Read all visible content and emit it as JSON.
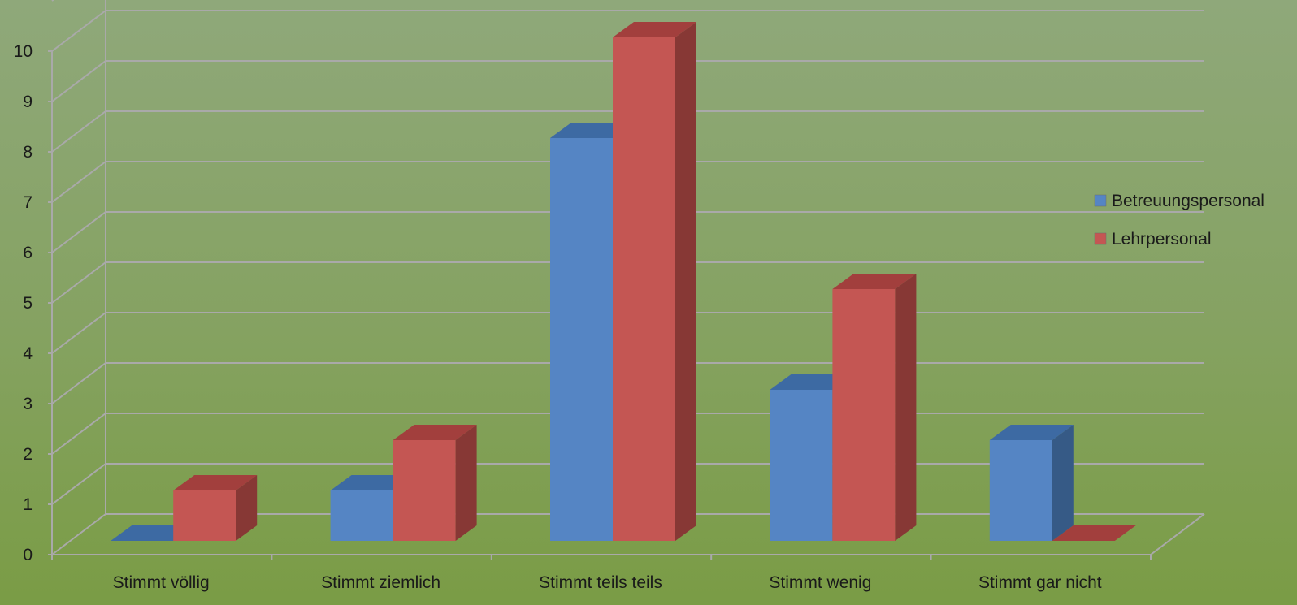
{
  "chart_data": {
    "type": "bar",
    "style": "3d-clustered-column",
    "categories": [
      "Stimmt völlig",
      "Stimmt ziemlich",
      "Stimmt teils teils",
      "Stimmt wenig",
      "Stimmt gar nicht"
    ],
    "series": [
      {
        "name": "Betreuungspersonal",
        "values": [
          0,
          1,
          8,
          3,
          2
        ],
        "color": "#5585c4",
        "top": "#3d6aa3",
        "side": "#365a86"
      },
      {
        "name": "Lehrpersonal",
        "values": [
          1,
          2,
          10,
          5,
          0
        ],
        "color": "#c45653",
        "top": "#a23f3d",
        "side": "#873835"
      }
    ],
    "ylim": [
      0,
      10
    ],
    "yticks": [
      "0",
      "1",
      "2",
      "3",
      "4",
      "5",
      "6",
      "7",
      "8",
      "9",
      "10"
    ],
    "grid": true,
    "legend": "right",
    "xlabel": "",
    "ylabel": ""
  }
}
